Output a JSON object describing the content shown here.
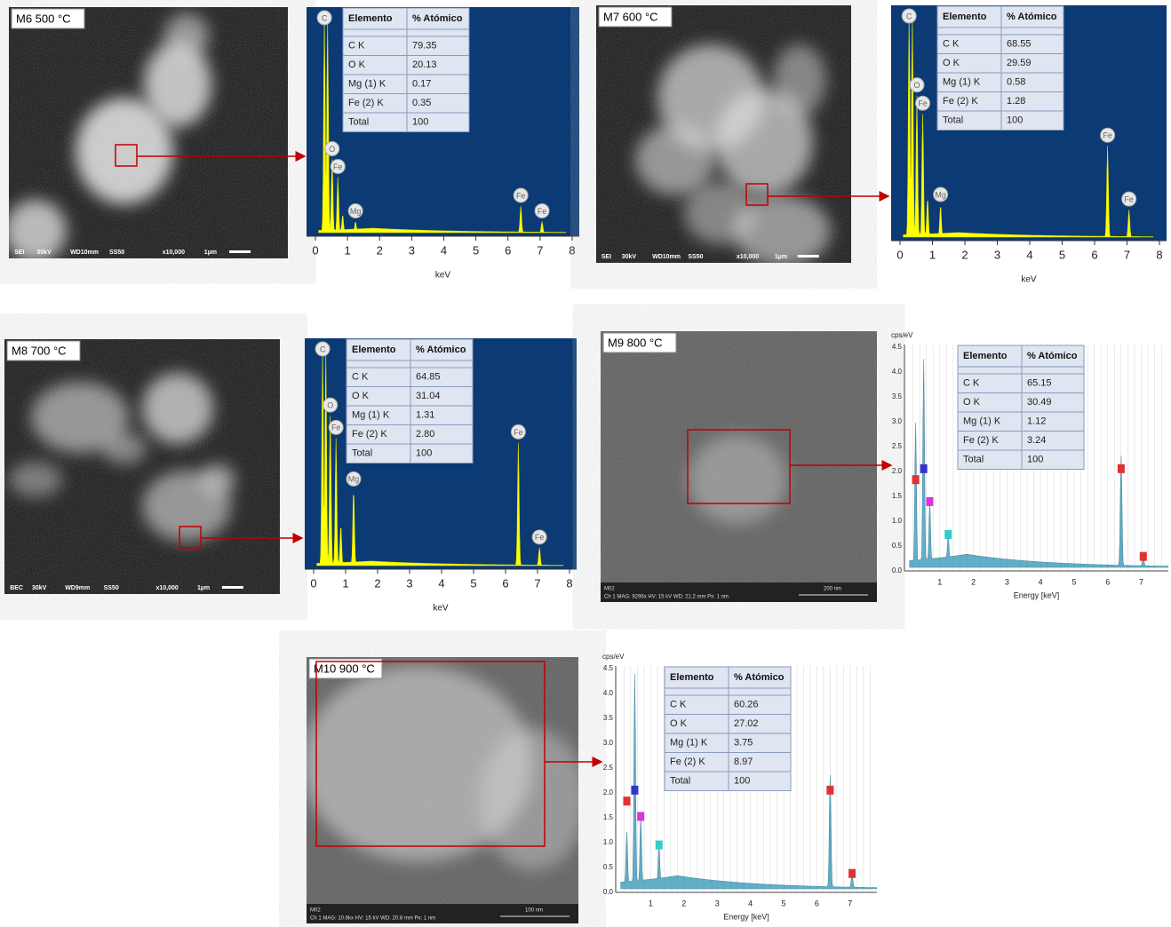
{
  "panels": [
    {
      "label": "M6 500 °C",
      "sem_footer": [
        "SEI",
        "30kV",
        "WD10mm",
        "SS50",
        "x10,000",
        "1µm"
      ],
      "table": {
        "header": [
          "Elemento",
          "% Atómico"
        ],
        "rows": [
          [
            "C K",
            "79.35"
          ],
          [
            "O K",
            "20.13"
          ],
          [
            "Mg (1) K",
            "0.17"
          ],
          [
            "Fe (2)  K",
            "0.35"
          ],
          [
            "Total",
            "100"
          ]
        ]
      },
      "x_ticks": [
        "0",
        "1",
        "2",
        "3",
        "4",
        "5",
        "6",
        "7",
        "8"
      ],
      "x_title": "keV",
      "peaks": [
        "C",
        "O",
        "Fe",
        "Mg",
        "Fe",
        "Fe"
      ]
    },
    {
      "label": "M7 600 °C",
      "sem_footer": [
        "SEI",
        "30kV",
        "WD10mm",
        "SS50",
        "x10,000",
        "1µm"
      ],
      "table": {
        "header": [
          "Elemento",
          "% Atómico"
        ],
        "rows": [
          [
            "C K",
            "68.55"
          ],
          [
            "O K",
            "29.59"
          ],
          [
            "Mg (1) K",
            "0.58"
          ],
          [
            "Fe (2)  K",
            "1.28"
          ],
          [
            "Total",
            "100"
          ]
        ]
      },
      "x_ticks": [
        "0",
        "1",
        "2",
        "3",
        "4",
        "5",
        "6",
        "7",
        "8"
      ],
      "x_title": "keV",
      "peaks": [
        "C",
        "O",
        "Fe",
        "Mg",
        "Fe",
        "Fe"
      ]
    },
    {
      "label": "M8 700 °C",
      "sem_footer": [
        "BEC",
        "30kV",
        "WD9mm",
        "SS50",
        "x10,000",
        "1µm"
      ],
      "table": {
        "header": [
          "Elemento",
          "% Atómico"
        ],
        "rows": [
          [
            "C K",
            "64.85"
          ],
          [
            "O K",
            "31.04"
          ],
          [
            "Mg (1) K",
            "1.31"
          ],
          [
            "Fe (2)  K",
            "2.80"
          ],
          [
            "Total",
            "100"
          ]
        ]
      },
      "x_ticks": [
        "0",
        "1",
        "2",
        "3",
        "4",
        "5",
        "6",
        "7",
        "8"
      ],
      "x_title": "keV",
      "peaks": [
        "C",
        "O",
        "Fe",
        "Mg",
        "Fe",
        "Fe"
      ]
    },
    {
      "label": "M9 800 °C",
      "sem_footer": [
        "M02",
        "Ch 1   MAG: 9296x   HV: 15 kV   WD: 21.2 mm   Px: 1 nm",
        "200 nm"
      ],
      "table": {
        "header": [
          "Elemento",
          "% Atómico"
        ],
        "rows": [
          [
            "C K",
            "65.15"
          ],
          [
            "O K",
            "30.49"
          ],
          [
            "Mg (1) K",
            "1.12"
          ],
          [
            "Fe (2)  K",
            "3.24"
          ],
          [
            "Total",
            "100"
          ]
        ]
      },
      "x_ticks": [
        "1",
        "2",
        "3",
        "4",
        "5",
        "6",
        "7"
      ],
      "x_title": "Energy [keV]",
      "y_ticks": [
        "0.0",
        "0.5",
        "1.0",
        "1.5",
        "2.0",
        "2.5",
        "3.0",
        "3.5",
        "4.0",
        "4.5"
      ],
      "y_title": "cps/eV"
    },
    {
      "label": "M10 900 °C",
      "sem_footer": [
        "M02",
        "Ch 1   MAG: 10.6kx   HV: 15 kV   WD: 20.8 mm   Px: 1 nm",
        "100 nm"
      ],
      "table": {
        "header": [
          "Elemento",
          "% Atómico"
        ],
        "rows": [
          [
            "C K",
            "60.26"
          ],
          [
            "O K",
            "27.02"
          ],
          [
            "Mg (1) K",
            "3.75"
          ],
          [
            "Fe (2)  K",
            "8.97"
          ],
          [
            "Total",
            "100"
          ]
        ]
      },
      "x_ticks": [
        "1",
        "2",
        "3",
        "4",
        "5",
        "6",
        "7"
      ],
      "x_title": "Energy [keV]",
      "y_ticks": [
        "0.0",
        "0.5",
        "1.0",
        "1.5",
        "2.0",
        "2.5",
        "3.0",
        "3.5",
        "4.0",
        "4.5"
      ],
      "y_title": "cps/eV"
    }
  ]
}
